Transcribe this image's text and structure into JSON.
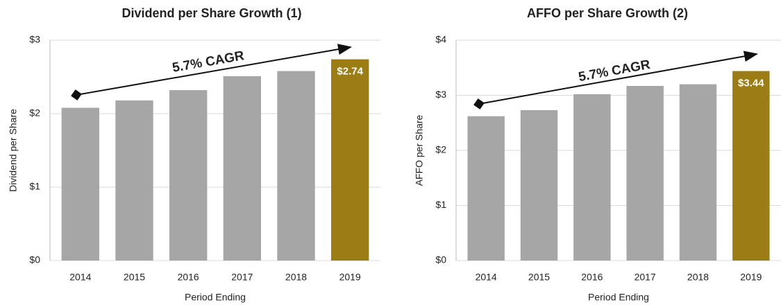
{
  "chart_data": [
    {
      "type": "bar",
      "title": "Dividend per Share Growth (1)",
      "y_label": "Dividend per Share",
      "x_label": "Period Ending",
      "annotation": "5.7% CAGR",
      "categories": [
        "2014",
        "2015",
        "2016",
        "2017",
        "2018",
        "2019"
      ],
      "values": [
        2.08,
        2.18,
        2.32,
        2.51,
        2.58,
        2.74
      ],
      "value_labels": [
        null,
        null,
        null,
        null,
        null,
        "$2.74"
      ],
      "colors": [
        "#a6a6a6",
        "#a6a6a6",
        "#a6a6a6",
        "#a6a6a6",
        "#a6a6a6",
        "#9c7c14"
      ],
      "ylim": [
        0,
        3
      ],
      "yticks": [
        {
          "value": 0,
          "label": "$0"
        },
        {
          "value": 1,
          "label": "$1"
        },
        {
          "value": 2,
          "label": "$2"
        },
        {
          "value": 3,
          "label": "$3"
        }
      ],
      "grid": true
    },
    {
      "type": "bar",
      "title": "AFFO per Share Growth (2)",
      "y_label": "AFFO per Share",
      "x_label": "Period Ending",
      "annotation": "5.7% CAGR",
      "categories": [
        "2014",
        "2015",
        "2016",
        "2017",
        "2018",
        "2019"
      ],
      "values": [
        2.62,
        2.73,
        3.02,
        3.17,
        3.2,
        3.44
      ],
      "value_labels": [
        null,
        null,
        null,
        null,
        null,
        "$3.44"
      ],
      "colors": [
        "#a6a6a6",
        "#a6a6a6",
        "#a6a6a6",
        "#a6a6a6",
        "#a6a6a6",
        "#9c7c14"
      ],
      "ylim": [
        0,
        4
      ],
      "yticks": [
        {
          "value": 0,
          "label": "$0"
        },
        {
          "value": 1,
          "label": "$1"
        },
        {
          "value": 2,
          "label": "$2"
        },
        {
          "value": 3,
          "label": "$3"
        },
        {
          "value": 4,
          "label": "$4"
        }
      ],
      "grid": true
    }
  ]
}
